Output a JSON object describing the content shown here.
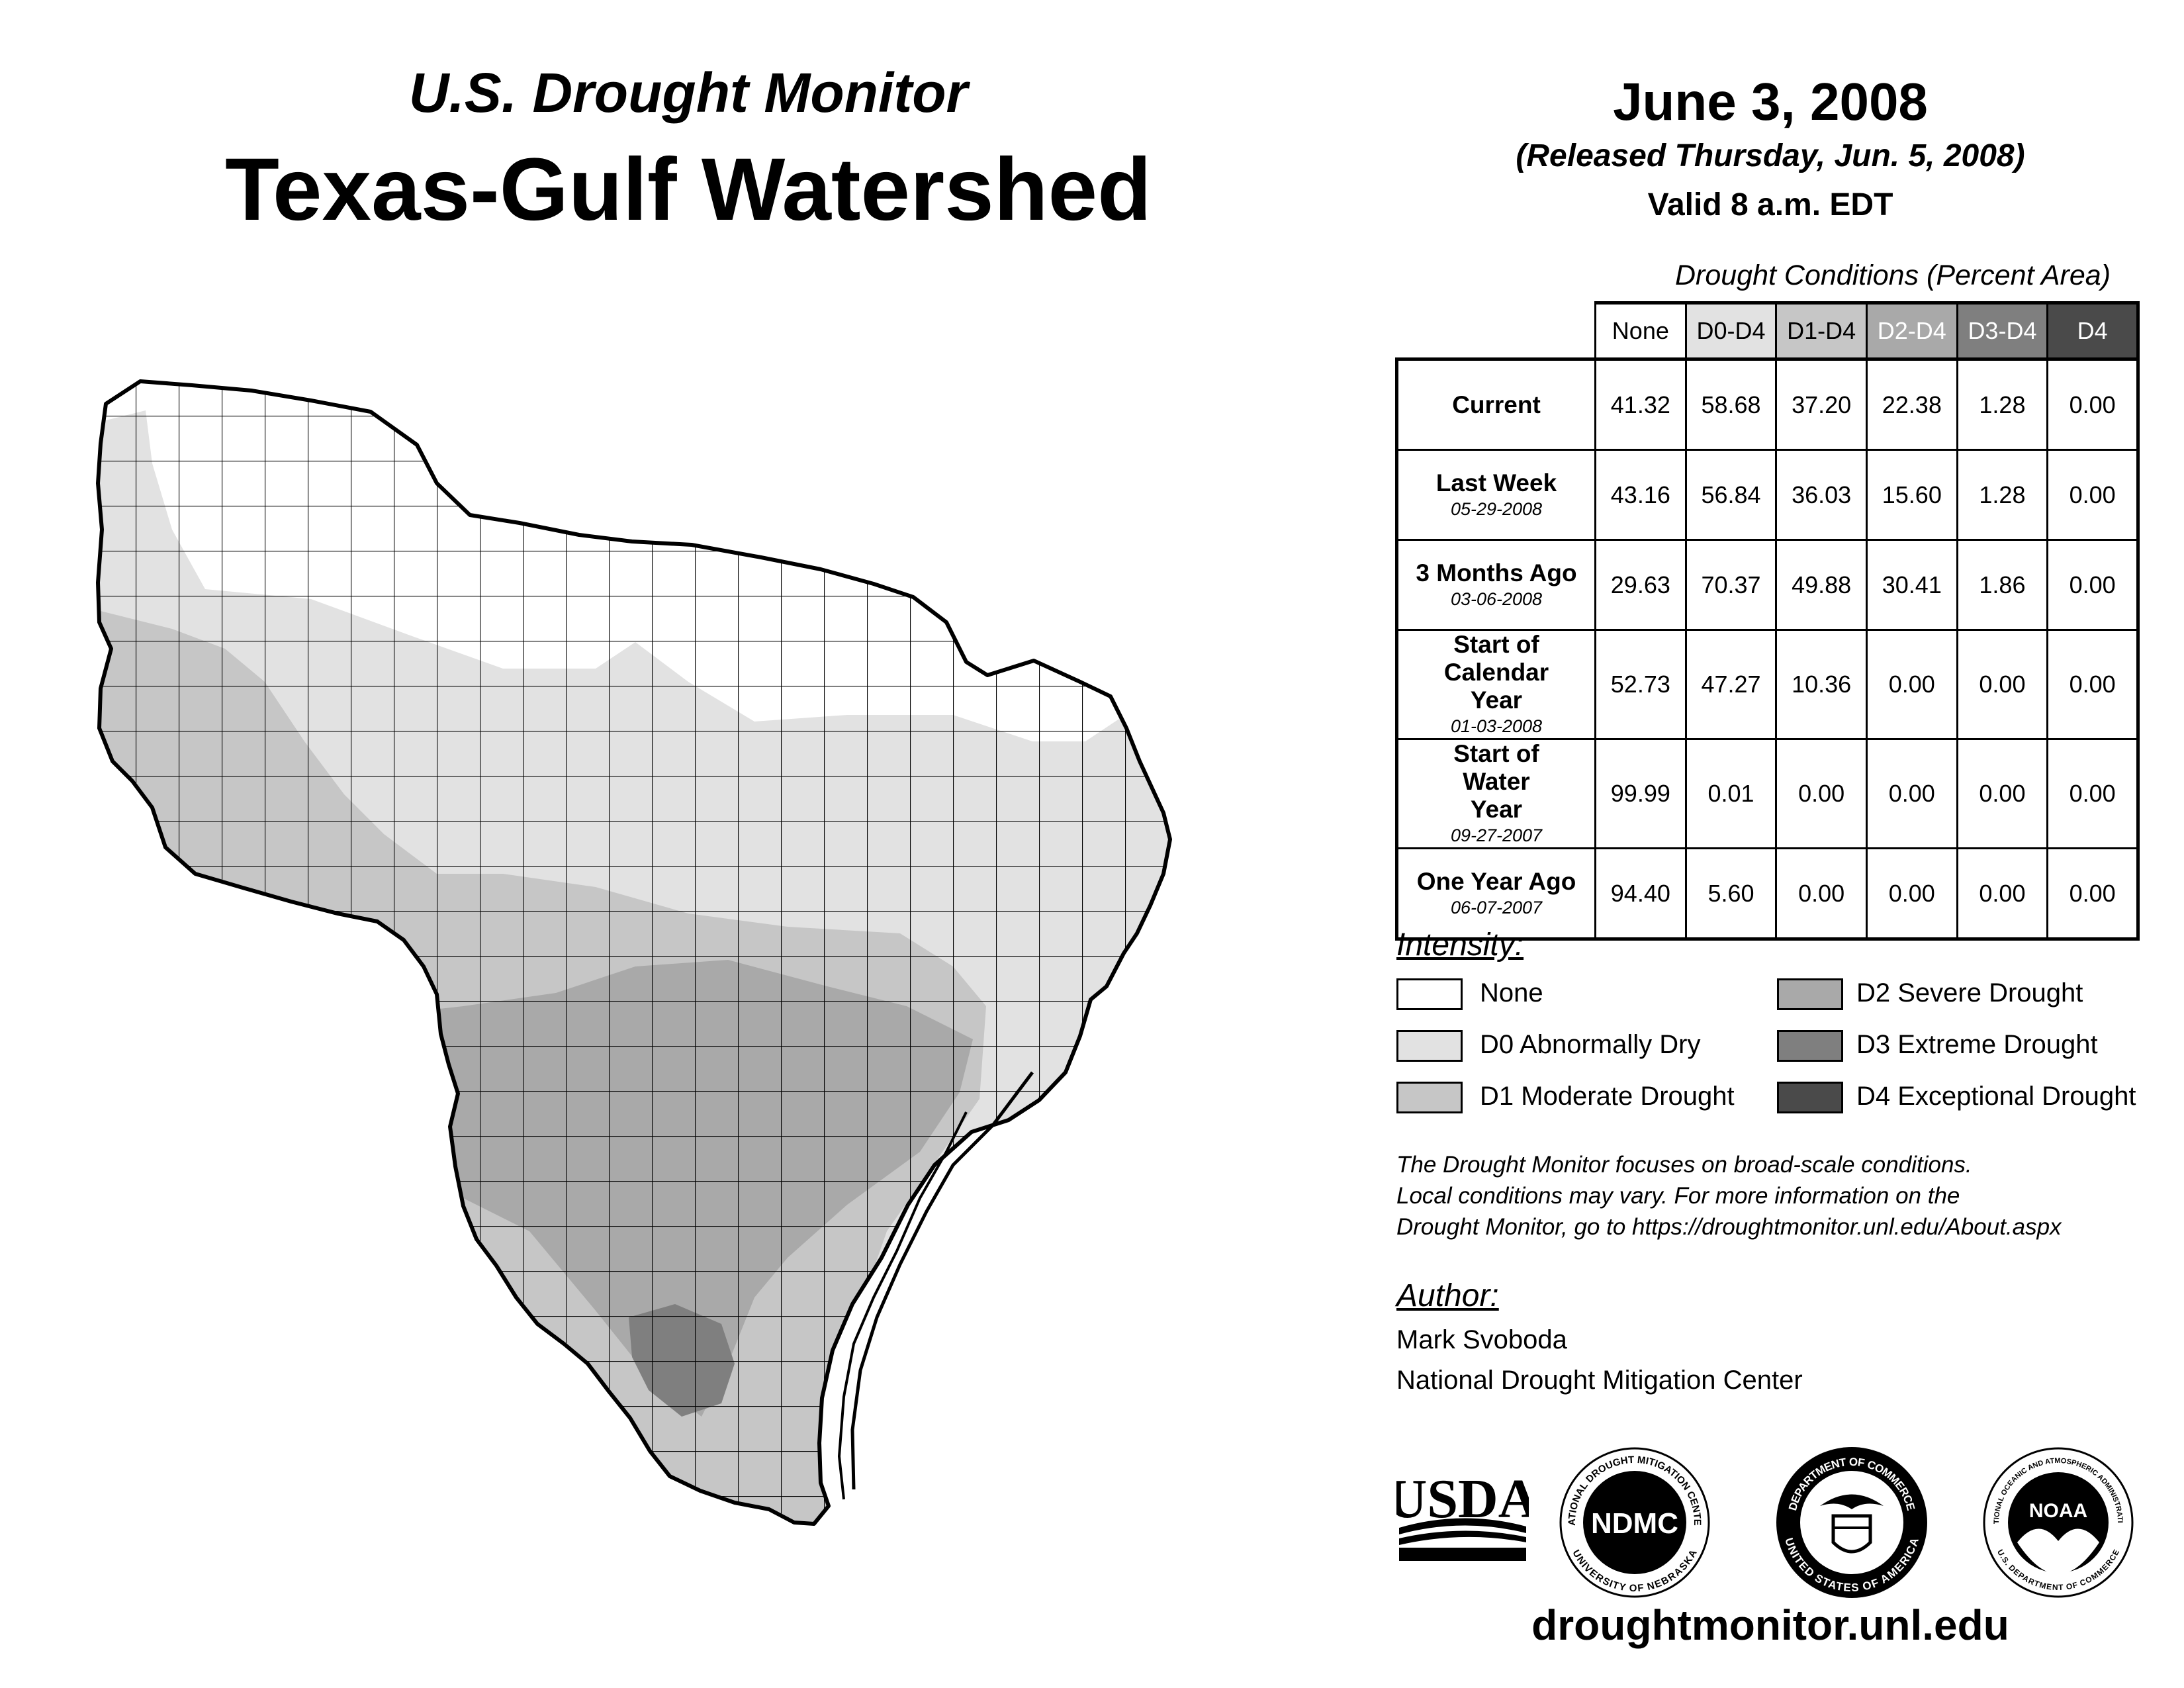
{
  "header": {
    "subtitle": "U.S. Drought Monitor",
    "title": "Texas-Gulf Watershed"
  },
  "release": {
    "date": "June 3, 2008",
    "released": "(Released Thursday, Jun. 5, 2008)",
    "valid": "Valid 8 a.m. EDT"
  },
  "table": {
    "caption": "Drought Conditions (Percent Area)",
    "columns": [
      "None",
      "D0-D4",
      "D1-D4",
      "D2-D4",
      "D3-D4",
      "D4"
    ],
    "rows": [
      {
        "label": "Current",
        "date": "",
        "values": [
          "41.32",
          "58.68",
          "37.20",
          "22.38",
          "1.28",
          "0.00"
        ]
      },
      {
        "label": "Last Week",
        "date": "05-29-2008",
        "values": [
          "43.16",
          "56.84",
          "36.03",
          "15.60",
          "1.28",
          "0.00"
        ]
      },
      {
        "label": "3 Months Ago",
        "date": "03-06-2008",
        "values": [
          "29.63",
          "70.37",
          "49.88",
          "30.41",
          "1.86",
          "0.00"
        ]
      },
      {
        "label": "Start of Calendar Year",
        "date": "01-03-2008",
        "values": [
          "52.73",
          "47.27",
          "10.36",
          "0.00",
          "0.00",
          "0.00"
        ]
      },
      {
        "label": "Start of Water Year",
        "date": "09-27-2007",
        "values": [
          "99.99",
          "0.01",
          "0.00",
          "0.00",
          "0.00",
          "0.00"
        ]
      },
      {
        "label": "One Year Ago",
        "date": "06-07-2007",
        "values": [
          "94.40",
          "5.60",
          "0.00",
          "0.00",
          "0.00",
          "0.00"
        ]
      }
    ]
  },
  "legend": {
    "title": "Intensity:",
    "items": [
      {
        "label": "None",
        "color": "#ffffff"
      },
      {
        "label": "D0 Abnormally Dry",
        "color": "#e2e2e2"
      },
      {
        "label": "D1 Moderate Drought",
        "color": "#c6c6c6"
      },
      {
        "label": "D2 Severe Drought",
        "color": "#a9a9a9"
      },
      {
        "label": "D3 Extreme Drought",
        "color": "#7f7f7f"
      },
      {
        "label": "D4 Exceptional Drought",
        "color": "#4a4a4a"
      }
    ]
  },
  "note": {
    "line1": "The Drought Monitor focuses on broad-scale conditions.",
    "line2": "Local conditions may vary. For more information on the",
    "line3": "Drought Monitor, go to https://droughtmonitor.unl.edu/About.aspx"
  },
  "author": {
    "title": "Author:",
    "name": "Mark Svoboda",
    "org": "National Drought Mitigation Center"
  },
  "logos": {
    "usda": "USDA",
    "ndmc": "NDMC",
    "ndmc_ring_top": "NATIONAL DROUGHT MITIGATION CENTER",
    "ndmc_ring_bottom": "UNIVERSITY OF NEBRASKA",
    "doc_ring_top": "DEPARTMENT OF COMMERCE",
    "doc_ring_bottom": "UNITED STATES OF AMERICA",
    "noaa": "NOAA",
    "noaa_ring_top": "NATIONAL OCEANIC AND ATMOSPHERIC ADMINISTRATION",
    "noaa_ring_bottom": "U.S. DEPARTMENT OF COMMERCE"
  },
  "footer": {
    "url": "droughtmonitor.unl.edu"
  }
}
